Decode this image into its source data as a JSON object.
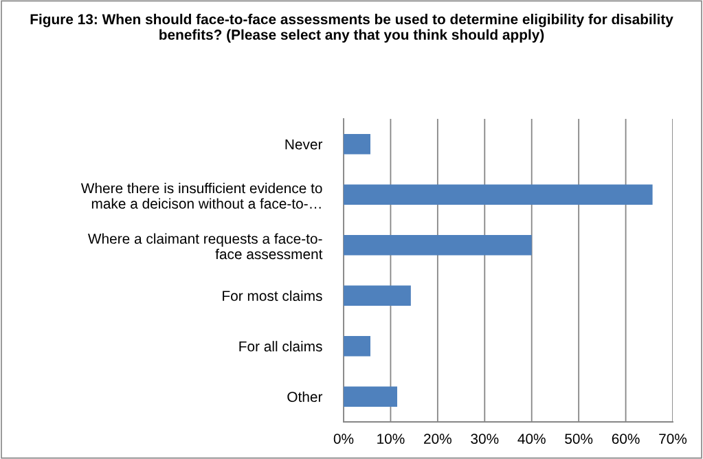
{
  "chart_data": {
    "type": "bar",
    "orientation": "horizontal",
    "title": "Figure 13: When should face-to-face assessments be used to determine eligibility for disability benefits? (Please select any that you think should apply)",
    "categories": [
      "Never",
      "Where there is insufficient evidence to\nmake a deicison without a face-to-…",
      "Where a claimant requests a face-to-\nface assessment",
      "For most claims",
      "For all claims",
      "Other"
    ],
    "values": [
      5.7,
      65.7,
      40.0,
      14.3,
      5.7,
      11.4
    ],
    "color": "#4f81bd",
    "xlim": [
      0,
      70
    ],
    "xticks": [
      {
        "value": 0,
        "label": "0%"
      },
      {
        "value": 10,
        "label": "10%"
      },
      {
        "value": 20,
        "label": "20%"
      },
      {
        "value": 30,
        "label": "30%"
      },
      {
        "value": 40,
        "label": "40%"
      },
      {
        "value": 50,
        "label": "50%"
      },
      {
        "value": 60,
        "label": "60%"
      },
      {
        "value": 70,
        "label": "70%"
      }
    ],
    "grid": "x"
  }
}
